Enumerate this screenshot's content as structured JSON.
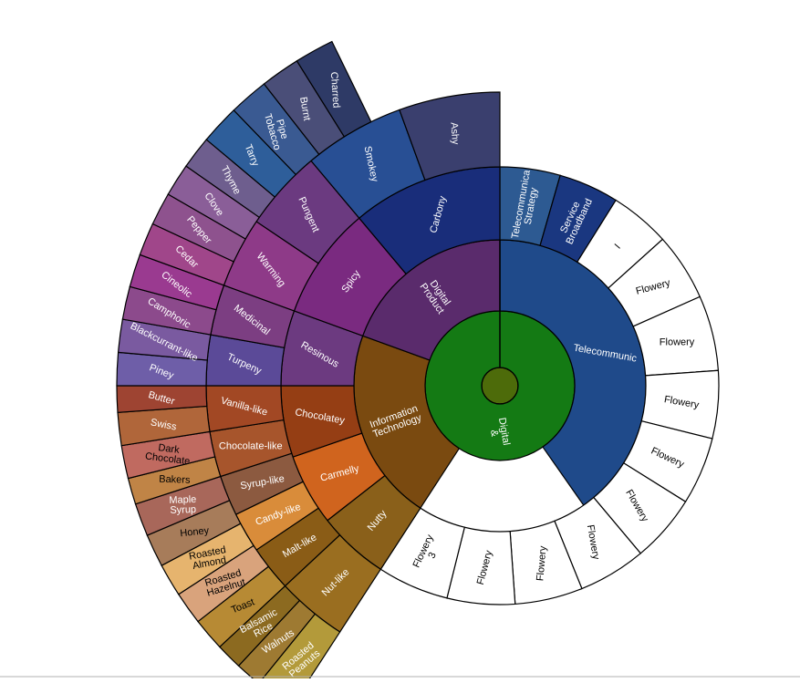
{
  "chart_data": {
    "type": "sunburst",
    "title": "",
    "colors": {
      "center": "#4d6b0a",
      "root": "#147a14",
      "stroke": "#000000",
      "label_light": "#ffffff",
      "label_dark": "#000000",
      "page_bottom_line": "#b0b0b0"
    },
    "center": {
      "label": ""
    },
    "rings": [
      {
        "level": 1,
        "segments": [
          {
            "label": "Digital\n&",
            "start": 0,
            "end": 360,
            "color": "#147a14",
            "text": "light",
            "rotate": 80
          }
        ]
      },
      {
        "level": 2,
        "segments": [
          {
            "label": "Telecommunic",
            "start": 0,
            "end": 145,
            "color": "#1f4a8a",
            "text": "light",
            "rotate": 10
          },
          {
            "label": "Information\nTechnology",
            "start": 213,
            "end": 290,
            "color": "#7a4a10",
            "text": "light",
            "rotate": -20
          },
          {
            "label": "Digital\nProduct",
            "start": 290,
            "end": 360,
            "color": "#5a2b6c",
            "text": "light",
            "rotate": 55
          }
        ]
      },
      {
        "level": 3,
        "segments": [
          {
            "label": "Telecommunica\nStrategy",
            "start": 0,
            "end": 16,
            "color": "#2d5a92",
            "text": "light",
            "rotate": -80
          },
          {
            "label": "Service\nBroadband",
            "start": 16,
            "end": 32,
            "color": "#1a3780",
            "text": "light",
            "rotate": -65
          },
          {
            "label": "I",
            "start": 32,
            "end": 48,
            "color": "#ffffff",
            "text": "dark",
            "rotate": -50
          },
          {
            "label": "Flowery",
            "start": 48,
            "end": 66,
            "color": "#ffffff",
            "text": "dark",
            "rotate": -15
          },
          {
            "label": "Flowery",
            "start": 66,
            "end": 86,
            "color": "#ffffff",
            "text": "dark",
            "rotate": 0
          },
          {
            "label": "Flowery",
            "start": 86,
            "end": 104,
            "color": "#ffffff",
            "text": "dark",
            "rotate": 10
          },
          {
            "label": "Flowery",
            "start": 104,
            "end": 122,
            "color": "#ffffff",
            "text": "dark",
            "rotate": 25
          },
          {
            "label": "Flowery",
            "start": 122,
            "end": 140,
            "color": "#ffffff",
            "text": "dark",
            "rotate": 60
          },
          {
            "label": "Flowery",
            "start": 140,
            "end": 158,
            "color": "#ffffff",
            "text": "dark",
            "rotate": 80
          },
          {
            "label": "Flowery",
            "start": 158,
            "end": 176,
            "color": "#ffffff",
            "text": "dark",
            "rotate": -85
          },
          {
            "label": "Flowery",
            "start": 176,
            "end": 194,
            "color": "#ffffff",
            "text": "dark",
            "rotate": -75
          },
          {
            "label": "Flowery\n3",
            "start": 194,
            "end": 213,
            "color": "#ffffff",
            "text": "dark",
            "rotate": -65
          },
          {
            "label": "Nutty",
            "start": 213,
            "end": 232,
            "color": "#8a601a",
            "text": "light",
            "rotate": -50
          },
          {
            "label": "Carmelly",
            "start": 232,
            "end": 251,
            "color": "#d0641e",
            "text": "light",
            "rotate": -15
          },
          {
            "label": "Chocolatey",
            "start": 251,
            "end": 270,
            "color": "#953e14",
            "text": "light",
            "rotate": 10
          },
          {
            "label": "Resinous",
            "start": 270,
            "end": 290,
            "color": "#6c3a80",
            "text": "light",
            "rotate": 30
          },
          {
            "label": "Spicy",
            "start": 290,
            "end": 320,
            "color": "#7a2a80",
            "text": "light",
            "rotate": -55
          },
          {
            "label": "Carbony",
            "start": 320,
            "end": 360,
            "color": "#192d7a",
            "text": "light",
            "rotate": -75
          }
        ]
      },
      {
        "level": 4,
        "segments": [
          {
            "label": "Nut-like",
            "start": 213,
            "end": 227,
            "color": "#9a6e20",
            "text": "light",
            "rotate": -45
          },
          {
            "label": "Malt-like",
            "start": 227,
            "end": 236,
            "color": "#8a5c16",
            "text": "light",
            "rotate": -30
          },
          {
            "label": "Candy-like",
            "start": 236,
            "end": 244,
            "color": "#d98c3a",
            "text": "light",
            "rotate": -20
          },
          {
            "label": "Syrup-like",
            "start": 244,
            "end": 252,
            "color": "#8c5a40",
            "text": "light",
            "rotate": -10
          },
          {
            "label": "Chocolate-like",
            "start": 252,
            "end": 261,
            "color": "#a7552c",
            "text": "light",
            "rotate": 0
          },
          {
            "label": "Vanilla-like",
            "start": 261,
            "end": 270,
            "color": "#a24824",
            "text": "light",
            "rotate": 15
          },
          {
            "label": "Turpeny",
            "start": 270,
            "end": 280,
            "color": "#5b4a98",
            "text": "light",
            "rotate": 25
          },
          {
            "label": "Medicinal",
            "start": 280,
            "end": 290,
            "color": "#7c3e82",
            "text": "light",
            "rotate": 38
          },
          {
            "label": "Warming",
            "start": 290,
            "end": 304,
            "color": "#8e3a88",
            "text": "light",
            "rotate": 52
          },
          {
            "label": "Pungent",
            "start": 304,
            "end": 320,
            "color": "#6b3a80",
            "text": "light",
            "rotate": 66
          },
          {
            "label": "Smokey",
            "start": 320,
            "end": 340,
            "color": "#284f94",
            "text": "light",
            "rotate": 78
          },
          {
            "label": "Ashy",
            "start": 340,
            "end": 360,
            "color": "#3a3f6e",
            "text": "light",
            "rotate": 86
          }
        ]
      },
      {
        "level": 5,
        "segments": [
          {
            "label": "Roasted\nPeanuts",
            "start": 213,
            "end": 219,
            "color": "#b39a3a",
            "text": "light",
            "rotate": -40
          },
          {
            "label": "Walnuts",
            "start": 219,
            "end": 223,
            "color": "#9e7a32",
            "text": "light",
            "rotate": -33
          },
          {
            "label": "Balsamic\nRice",
            "start": 223,
            "end": 227,
            "color": "#8c6a20",
            "text": "light",
            "rotate": -28
          },
          {
            "label": "Toast",
            "start": 227,
            "end": 232,
            "color": "#b78a34",
            "text": "dark",
            "rotate": -22
          },
          {
            "label": "Roasted\nHazelnut",
            "start": 232,
            "end": 237,
            "color": "#d9a37c",
            "text": "dark",
            "rotate": -17
          },
          {
            "label": "Roasted\nAlmond",
            "start": 237,
            "end": 242,
            "color": "#e6b46e",
            "text": "dark",
            "rotate": -11
          },
          {
            "label": "Honey",
            "start": 242,
            "end": 247,
            "color": "#a77c5a",
            "text": "dark",
            "rotate": -6
          },
          {
            "label": "Maple\nSyrup",
            "start": 247,
            "end": 252,
            "color": "#a8675a",
            "text": "light",
            "rotate": -2
          },
          {
            "label": "Bakers",
            "start": 252,
            "end": 256,
            "color": "#c08446",
            "text": "dark",
            "rotate": 2
          },
          {
            "label": "Dark\nChocolate",
            "start": 256,
            "end": 261,
            "color": "#c06a60",
            "text": "dark",
            "rotate": 7
          },
          {
            "label": "Swiss",
            "start": 261,
            "end": 266,
            "color": "#b0663a",
            "text": "light",
            "rotate": 11
          },
          {
            "label": "Butter",
            "start": 266,
            "end": 270,
            "color": "#9e4432",
            "text": "light",
            "rotate": 16
          },
          {
            "label": "Piney",
            "start": 270,
            "end": 275,
            "color": "#6e5ea8",
            "text": "light",
            "rotate": 21
          },
          {
            "label": "Blackcurrant-like",
            "start": 275,
            "end": 280,
            "color": "#7a5aa0",
            "text": "light",
            "rotate": 27
          },
          {
            "label": "Camphoric",
            "start": 280,
            "end": 285,
            "color": "#8c4a8c",
            "text": "light",
            "rotate": 32
          },
          {
            "label": "Cineolic",
            "start": 285,
            "end": 290,
            "color": "#9a3a90",
            "text": "light",
            "rotate": 38
          },
          {
            "label": "Cedar",
            "start": 290,
            "end": 295,
            "color": "#a0468a",
            "text": "light",
            "rotate": 44
          },
          {
            "label": "Pepper",
            "start": 295,
            "end": 300,
            "color": "#8e528e",
            "text": "light",
            "rotate": 50
          },
          {
            "label": "Clove",
            "start": 300,
            "end": 305,
            "color": "#8a5e98",
            "text": "light",
            "rotate": 56
          },
          {
            "label": "Thyme",
            "start": 305,
            "end": 310,
            "color": "#6e5e8e",
            "text": "light",
            "rotate": 62
          },
          {
            "label": "Tarry",
            "start": 310,
            "end": 316,
            "color": "#2e5e9a",
            "text": "light",
            "rotate": 68
          },
          {
            "label": "Pipe\nTobacco",
            "start": 316,
            "end": 322,
            "color": "#3a5a92",
            "text": "light",
            "rotate": 74
          },
          {
            "label": "Burnt",
            "start": 322,
            "end": 328,
            "color": "#4a4e78",
            "text": "light",
            "rotate": 80
          },
          {
            "label": "Charred",
            "start": 328,
            "end": 334,
            "color": "#2e3a66",
            "text": "light",
            "rotate": 86
          }
        ]
      }
    ]
  }
}
